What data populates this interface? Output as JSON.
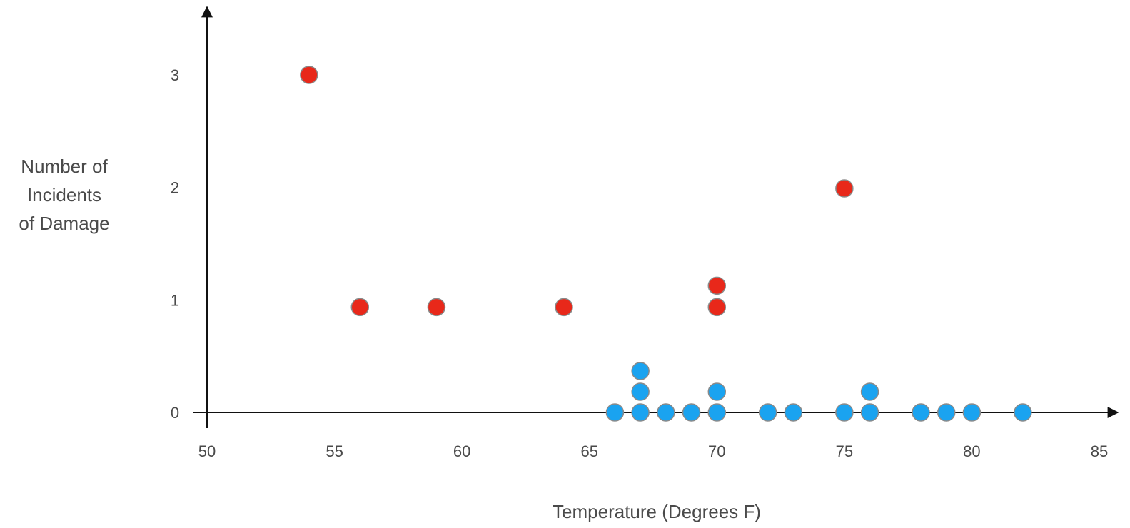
{
  "chart_data": {
    "type": "scatter",
    "title": "",
    "xlabel": "Temperature (Degrees F)",
    "ylabel_lines": [
      "Number of",
      "Incidents",
      "of Damage"
    ],
    "xlim": [
      50,
      85
    ],
    "ylim": [
      0,
      3
    ],
    "x_ticks": [
      "50",
      "55",
      "60",
      "65",
      "70",
      "75",
      "80",
      "85"
    ],
    "y_ticks": [
      "0",
      "1",
      "2",
      "3"
    ],
    "grid": false,
    "legend": "none",
    "colors": {
      "damage": "#e8281a",
      "no_damage": "#1aa3f0",
      "point_outline": "#8a8a8a",
      "axis": "#111111",
      "text": "#4a4a4a"
    },
    "series": [
      {
        "values": [
          {
            "x": 54,
            "y": 3
          },
          {
            "x": 56,
            "y": 1
          },
          {
            "x": 59,
            "y": 1
          },
          {
            "x": 64,
            "y": 1
          },
          {
            "x": 70,
            "y": 1
          },
          {
            "x": 70,
            "y": 1
          },
          {
            "x": 75,
            "y": 2
          }
        ],
        "color": "#e8281a"
      },
      {
        "values": [
          {
            "x": 66,
            "y": 0
          },
          {
            "x": 67,
            "y": 0
          },
          {
            "x": 67,
            "y": 0
          },
          {
            "x": 67,
            "y": 0
          },
          {
            "x": 68,
            "y": 0
          },
          {
            "x": 69,
            "y": 0
          },
          {
            "x": 70,
            "y": 0
          },
          {
            "x": 70,
            "y": 0
          },
          {
            "x": 72,
            "y": 0
          },
          {
            "x": 73,
            "y": 0
          },
          {
            "x": 75,
            "y": 0
          },
          {
            "x": 76,
            "y": 0
          },
          {
            "x": 76,
            "y": 0
          },
          {
            "x": 78,
            "y": 0
          },
          {
            "x": 79,
            "y": 0
          },
          {
            "x": 80,
            "y": 0
          },
          {
            "x": 82,
            "y": 0
          }
        ],
        "color": "#1aa3f0"
      }
    ]
  }
}
